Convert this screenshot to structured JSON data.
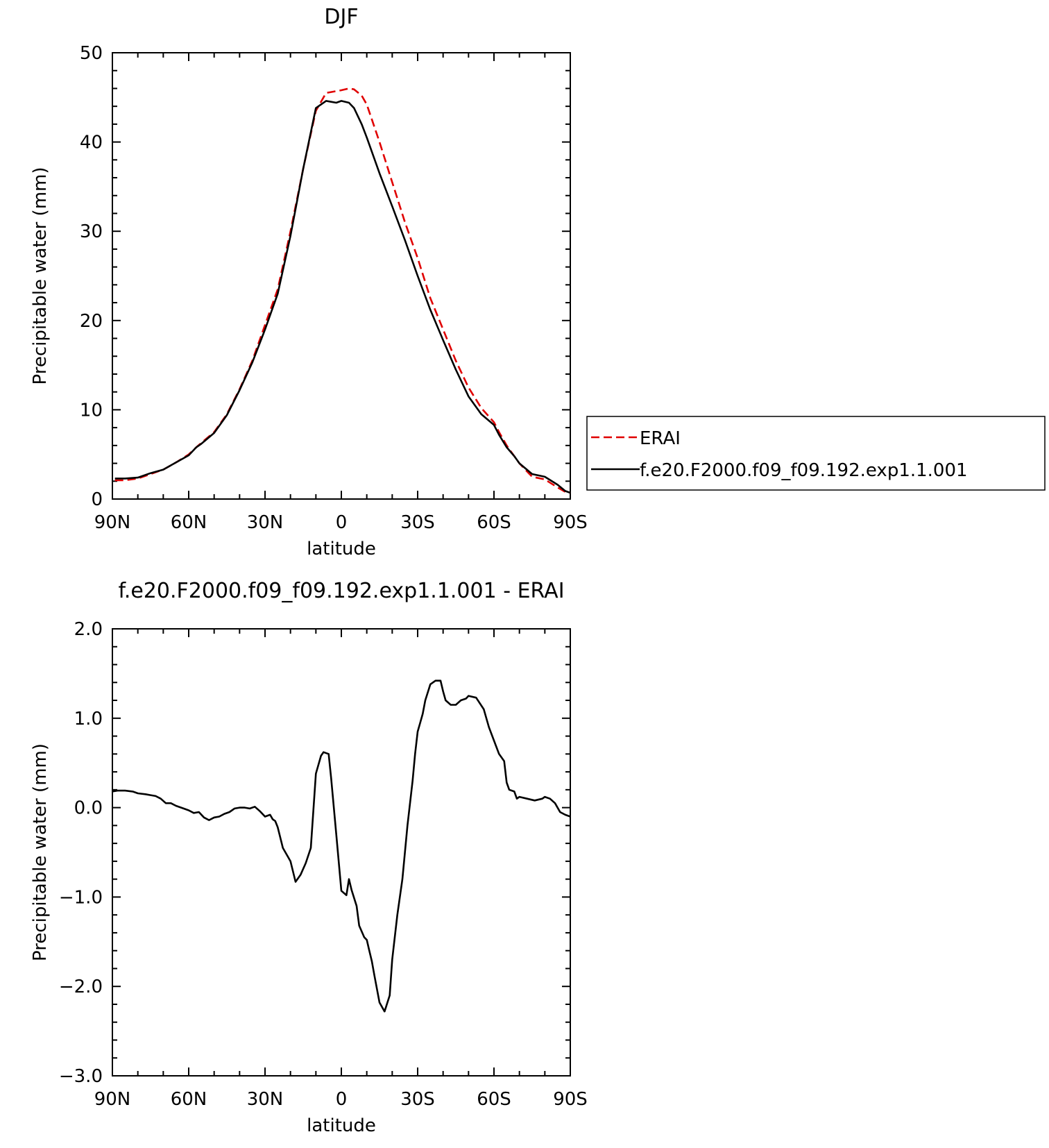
{
  "chart_data": [
    {
      "type": "line",
      "title": "DJF",
      "xlabel": "latitude",
      "ylabel": "Precipitable water (mm)",
      "xlim": [
        90,
        -90
      ],
      "ylim": [
        0,
        50
      ],
      "x_ticks": [
        {
          "value": 90,
          "label": "90N"
        },
        {
          "value": 60,
          "label": "60N"
        },
        {
          "value": 30,
          "label": "30N"
        },
        {
          "value": 0,
          "label": "0"
        },
        {
          "value": -30,
          "label": "30S"
        },
        {
          "value": -60,
          "label": "60S"
        },
        {
          "value": -90,
          "label": "90S"
        }
      ],
      "y_ticks": [
        {
          "value": 0,
          "label": "0"
        },
        {
          "value": 10,
          "label": "10"
        },
        {
          "value": 20,
          "label": "20"
        },
        {
          "value": 30,
          "label": "30"
        },
        {
          "value": 40,
          "label": "40"
        },
        {
          "value": 50,
          "label": "50"
        }
      ],
      "grid": false,
      "legend_position": "right",
      "series": [
        {
          "name": "ERAI",
          "color": "#e00000",
          "dash": true,
          "x": [
            89,
            85,
            80,
            75,
            70,
            65,
            60,
            57,
            55,
            50,
            45,
            40,
            35,
            30,
            25,
            20,
            15,
            10,
            6,
            4,
            2,
            0,
            -3,
            -5,
            -8,
            -10,
            -15,
            -20,
            -25,
            -30,
            -35,
            -40,
            -45,
            -50,
            -55,
            -60,
            -62,
            -65,
            -68,
            -70,
            -75,
            -80,
            -85,
            -88,
            -90
          ],
          "y": [
            2.1,
            2.1,
            2.3,
            2.8,
            3.3,
            4.1,
            5.0,
            5.8,
            6.3,
            7.5,
            9.5,
            12.3,
            15.5,
            19.5,
            23.5,
            30.0,
            37.0,
            43.5,
            45.5,
            45.6,
            45.7,
            45.8,
            46.0,
            45.9,
            45.2,
            44.2,
            40.0,
            35.5,
            31.0,
            27.0,
            22.5,
            19.0,
            15.5,
            12.5,
            10.2,
            8.6,
            7.5,
            6.0,
            4.8,
            4.0,
            2.5,
            2.2,
            1.3,
            0.8,
            0.7
          ]
        },
        {
          "name": "f.e20.F2000.f09_f09.192.exp1.1.001",
          "color": "#000000",
          "dash": false,
          "x": [
            89,
            85,
            80,
            75,
            70,
            65,
            60,
            57,
            55,
            50,
            45,
            40,
            35,
            30,
            25,
            20,
            15,
            10,
            6,
            4,
            2,
            0,
            -3,
            -5,
            -8,
            -10,
            -15,
            -20,
            -25,
            -30,
            -35,
            -40,
            -45,
            -50,
            -55,
            -60,
            -62,
            -65,
            -68,
            -70,
            -75,
            -80,
            -85,
            -88,
            -90
          ],
          "y": [
            2.3,
            2.3,
            2.4,
            2.9,
            3.3,
            4.1,
            4.9,
            5.8,
            6.2,
            7.4,
            9.4,
            12.2,
            15.3,
            19.0,
            23.0,
            29.5,
            37.0,
            43.8,
            44.6,
            44.5,
            44.4,
            44.6,
            44.4,
            43.8,
            42.0,
            40.5,
            36.5,
            32.8,
            29.0,
            25.0,
            21.2,
            17.8,
            14.5,
            11.5,
            9.5,
            8.3,
            7.2,
            5.8,
            4.8,
            4.0,
            2.8,
            2.5,
            1.6,
            0.9,
            0.7
          ]
        }
      ]
    },
    {
      "type": "line",
      "title": "f.e20.F2000.f09_f09.192.exp1.1.001 - ERAI",
      "xlabel": "latitude",
      "ylabel": "Precipitable water (mm)",
      "xlim": [
        90,
        -90
      ],
      "ylim": [
        -3.0,
        2.0
      ],
      "x_ticks": [
        {
          "value": 90,
          "label": "90N"
        },
        {
          "value": 60,
          "label": "60N"
        },
        {
          "value": 30,
          "label": "30N"
        },
        {
          "value": 0,
          "label": "0"
        },
        {
          "value": -30,
          "label": "30S"
        },
        {
          "value": -60,
          "label": "60S"
        },
        {
          "value": -90,
          "label": "90S"
        }
      ],
      "y_ticks": [
        {
          "value": -3.0,
          "label": "−3.0"
        },
        {
          "value": -2.0,
          "label": "−2.0"
        },
        {
          "value": -1.0,
          "label": "−1.0"
        },
        {
          "value": 0.0,
          "label": "0.0"
        },
        {
          "value": 1.0,
          "label": "1.0"
        },
        {
          "value": 2.0,
          "label": "2.0"
        }
      ],
      "grid": false,
      "series": [
        {
          "color": "#000000",
          "x": [
            90,
            88,
            85,
            82,
            80,
            77,
            75,
            73,
            71,
            69,
            67,
            65,
            62,
            60,
            58,
            56,
            54,
            52,
            50,
            48,
            46,
            44,
            42,
            40,
            38,
            36,
            34,
            32,
            30,
            28,
            27,
            26,
            25,
            23,
            21,
            20,
            18,
            16,
            14,
            12,
            10,
            8,
            7,
            5,
            4,
            2,
            0,
            -2,
            -3,
            -4,
            -6,
            -7,
            -9,
            -10,
            -11,
            -12,
            -13,
            -15,
            -17,
            -19,
            -20,
            -22,
            -24,
            -26,
            -28,
            -29,
            -30,
            -31,
            -32,
            -33,
            -35,
            -37,
            -39,
            -40,
            -41,
            -43,
            -45,
            -47,
            -49,
            -50,
            -53,
            -56,
            -58,
            -60,
            -62,
            -64,
            -65,
            -66,
            -68,
            -69,
            -70,
            -73,
            -76,
            -79,
            -80,
            -82,
            -84,
            -86,
            -88,
            -90
          ],
          "y": [
            0.18,
            0.19,
            0.19,
            0.18,
            0.16,
            0.15,
            0.14,
            0.13,
            0.1,
            0.05,
            0.05,
            0.02,
            -0.01,
            -0.03,
            -0.06,
            -0.05,
            -0.11,
            -0.14,
            -0.11,
            -0.1,
            -0.07,
            -0.05,
            -0.01,
            0.0,
            0.0,
            -0.01,
            0.01,
            -0.04,
            -0.1,
            -0.08,
            -0.13,
            -0.15,
            -0.22,
            -0.45,
            -0.55,
            -0.6,
            -0.83,
            -0.75,
            -0.62,
            -0.45,
            0.38,
            0.58,
            0.62,
            0.6,
            0.33,
            -0.3,
            -0.93,
            -0.98,
            -0.8,
            -0.92,
            -1.1,
            -1.32,
            -1.45,
            -1.48,
            -1.6,
            -1.72,
            -1.88,
            -2.18,
            -2.28,
            -2.1,
            -1.7,
            -1.2,
            -0.8,
            -0.2,
            0.3,
            0.6,
            0.85,
            0.95,
            1.05,
            1.2,
            1.38,
            1.42,
            1.42,
            1.3,
            1.2,
            1.15,
            1.15,
            1.2,
            1.22,
            1.25,
            1.23,
            1.1,
            0.9,
            0.75,
            0.6,
            0.52,
            0.28,
            0.2,
            0.18,
            0.1,
            0.12,
            0.1,
            0.08,
            0.1,
            0.12,
            0.1,
            0.05,
            -0.05,
            -0.08,
            -0.1
          ]
        }
      ]
    }
  ]
}
